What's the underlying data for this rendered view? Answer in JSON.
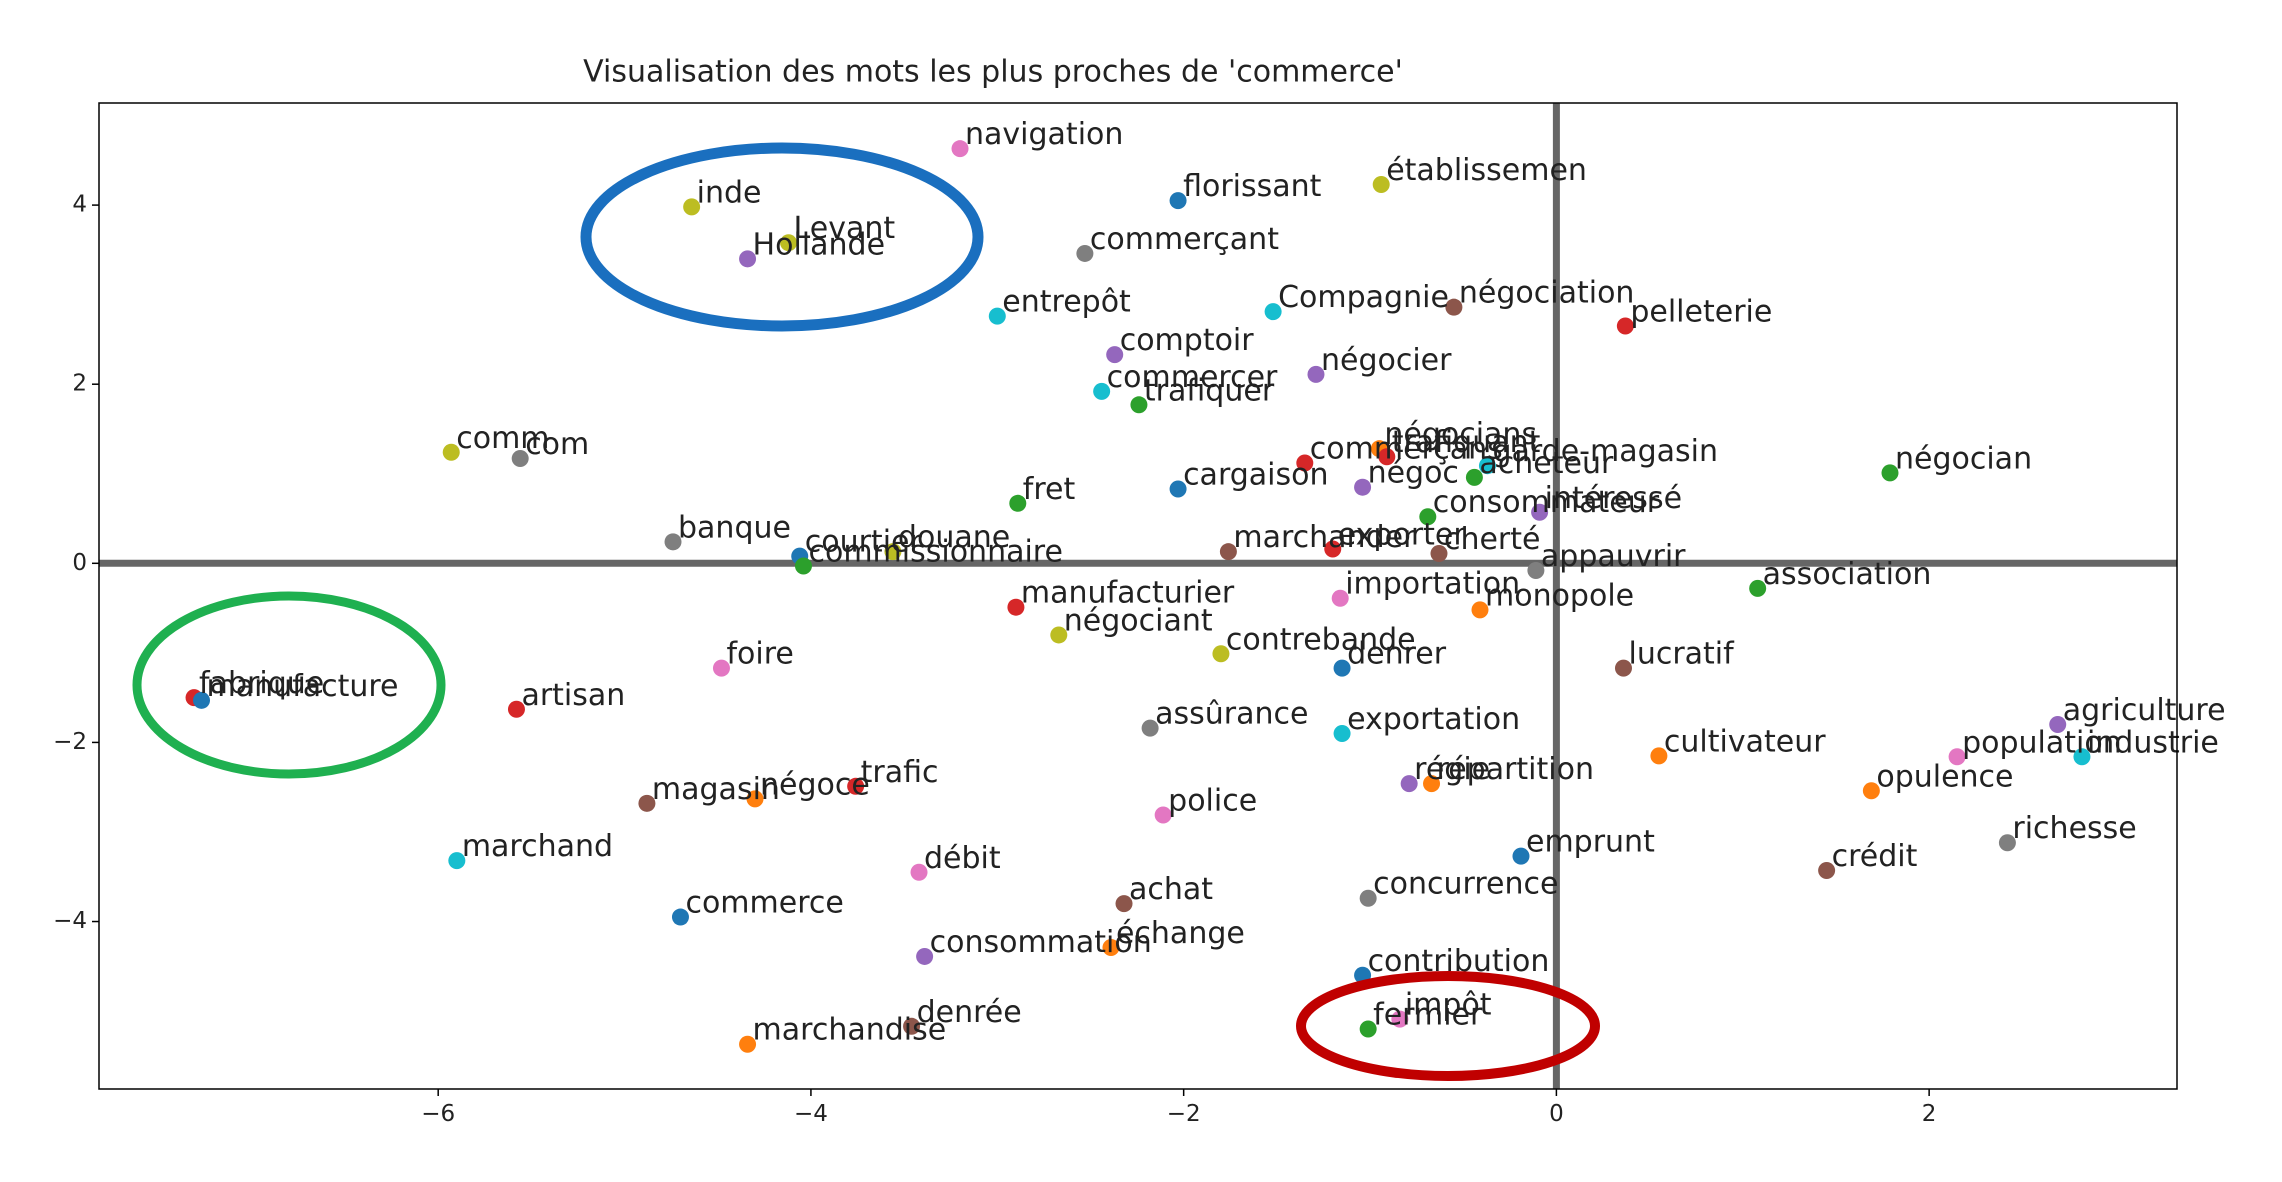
{
  "chart_data": {
    "type": "scatter",
    "title": "Visualisation des mots les plus proches de 'commerce'",
    "xlim": [
      -7.82,
      3.33
    ],
    "ylim": [
      -5.87,
      5.14
    ],
    "xticks": [
      {
        "value": -6,
        "label": "−6"
      },
      {
        "value": -4,
        "label": "−4"
      },
      {
        "value": -2,
        "label": "−2"
      },
      0,
      2
    ],
    "yticks": [
      {
        "value": -4,
        "label": "−4"
      },
      {
        "value": -2,
        "label": "−2"
      },
      0,
      2,
      4
    ],
    "reference_lines": {
      "x": 0,
      "y": 0
    },
    "labels": [
      "navigation",
      "inde",
      "Levant",
      "Hollande",
      "florissant",
      "établissemen",
      "commerçant",
      "entrepôt",
      "Compagnie",
      "négociation",
      "pelleterie",
      "comptoir",
      "négocier",
      "commercer",
      "trafiquer",
      "comm",
      "com",
      "négocians",
      "commerçans",
      "trafiquant",
      "garde-magasin",
      "acheteur",
      "négoc",
      "négocian",
      "fret",
      "cargaison",
      "consommateur",
      "intéressé",
      "banque",
      "courtier",
      "douane",
      "commissionnaire",
      "marchander",
      "exporter",
      "cherté",
      "appauvrir",
      "association",
      "manufacturier",
      "importation",
      "monopole",
      "négociant",
      "contrebande",
      "denrer",
      "lucratif",
      "foire",
      "fabrique",
      "manufacture",
      "artisan",
      "agriculture",
      "industrie",
      "population",
      "assûrance",
      "exportation",
      "cultivateur",
      "régie",
      "répartition",
      "opulence",
      "magasin",
      "négoce",
      "trafic",
      "police",
      "marchand",
      "richesse",
      "emprunt",
      "crédit",
      "débit",
      "achat",
      "concurrence",
      "commerce",
      "consommation",
      "échange",
      "contribution",
      "denrée",
      "marchandise",
      "fermier",
      "impôt"
    ],
    "x": [
      -3.2,
      -4.64,
      -4.12,
      -4.34,
      -2.03,
      -0.94,
      -2.53,
      -3.0,
      -1.52,
      -0.55,
      0.37,
      -2.37,
      -1.29,
      -2.44,
      -2.24,
      -5.93,
      -5.56,
      -0.95,
      -1.35,
      -0.91,
      -0.37,
      -0.44,
      -1.04,
      1.79,
      -2.89,
      -2.03,
      -0.69,
      -0.09,
      -4.74,
      -4.06,
      -3.56,
      -4.04,
      -1.76,
      -1.2,
      -0.63,
      -0.11,
      1.08,
      -2.9,
      -1.16,
      -0.41,
      -2.67,
      -1.8,
      -1.15,
      0.36,
      -4.48,
      -7.31,
      -7.27,
      -5.58,
      2.69,
      2.82,
      2.15,
      -2.18,
      -1.15,
      0.55,
      -0.79,
      -0.67,
      1.69,
      -4.88,
      -4.3,
      -3.76,
      -2.11,
      -5.9,
      2.42,
      -0.19,
      1.45,
      -3.42,
      -2.32,
      -1.01,
      -4.7,
      -3.39,
      -2.39,
      -1.04,
      -3.46,
      -4.34,
      -1.01,
      -0.84
    ],
    "values": [
      4.63,
      3.98,
      3.58,
      3.4,
      4.05,
      4.23,
      3.46,
      2.76,
      2.81,
      2.86,
      2.65,
      2.33,
      2.11,
      1.92,
      1.77,
      1.24,
      1.17,
      1.28,
      1.12,
      1.19,
      1.09,
      0.96,
      0.85,
      1.01,
      0.67,
      0.83,
      0.52,
      0.57,
      0.24,
      0.08,
      0.13,
      -0.03,
      0.13,
      0.16,
      0.11,
      -0.08,
      -0.28,
      -0.49,
      -0.39,
      -0.52,
      -0.8,
      -1.01,
      -1.17,
      -1.17,
      -1.17,
      -1.5,
      -1.53,
      -1.63,
      -1.8,
      -2.16,
      -2.16,
      -1.84,
      -1.9,
      -2.15,
      -2.46,
      -2.46,
      -2.54,
      -2.68,
      -2.63,
      -2.49,
      -2.81,
      -3.32,
      -3.12,
      -3.27,
      -3.43,
      -3.45,
      -3.8,
      -3.74,
      -3.95,
      -4.39,
      -4.29,
      -4.6,
      -5.17,
      -5.37,
      -5.2,
      -5.09
    ],
    "colors": [
      "#e377c2",
      "#bcbd22",
      "#bcbd22",
      "#9467bd",
      "#1f77b4",
      "#bcbd22",
      "#7f7f7f",
      "#17becf",
      "#17becf",
      "#8c564b",
      "#d62728",
      "#9467bd",
      "#9467bd",
      "#17becf",
      "#2ca02c",
      "#bcbd22",
      "#7f7f7f",
      "#ff7f0e",
      "#d62728",
      "#d62728",
      "#17becf",
      "#2ca02c",
      "#9467bd",
      "#2ca02c",
      "#2ca02c",
      "#1f77b4",
      "#2ca02c",
      "#9467bd",
      "#7f7f7f",
      "#1f77b4",
      "#bcbd22",
      "#2ca02c",
      "#8c564b",
      "#d62728",
      "#8c564b",
      "#7f7f7f",
      "#2ca02c",
      "#d62728",
      "#e377c2",
      "#ff7f0e",
      "#bcbd22",
      "#bcbd22",
      "#1f77b4",
      "#8c564b",
      "#e377c2",
      "#d62728",
      "#1f77b4",
      "#d62728",
      "#9467bd",
      "#17becf",
      "#e377c2",
      "#7f7f7f",
      "#17becf",
      "#ff7f0e",
      "#9467bd",
      "#ff7f0e",
      "#ff7f0e",
      "#8c564b",
      "#ff7f0e",
      "#d62728",
      "#e377c2",
      "#17becf",
      "#7f7f7f",
      "#1f77b4",
      "#8c564b",
      "#e377c2",
      "#8c564b",
      "#7f7f7f",
      "#1f77b4",
      "#9467bd",
      "#ff7f0e",
      "#1f77b4",
      "#8c564b",
      "#ff7f0e",
      "#2ca02c",
      "#e377c2"
    ]
  }
}
